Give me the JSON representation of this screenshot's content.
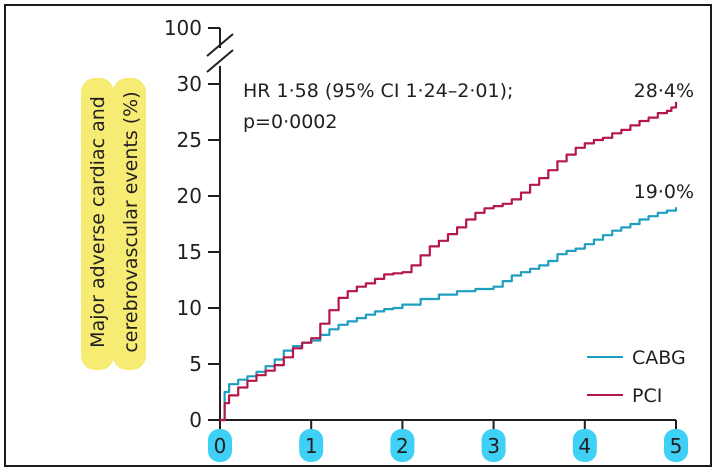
{
  "chart_data": {
    "type": "line",
    "title": "",
    "xlabel": "",
    "ylabel_lines": [
      "Major adverse cardiac and",
      "cerebrovascular events (%)"
    ],
    "xlim": [
      0,
      5
    ],
    "ylim": [
      0,
      30
    ],
    "y_break_top": 100,
    "x_ticks": [
      "0",
      "1",
      "2",
      "3",
      "4",
      "5"
    ],
    "y_ticks": [
      "0",
      "5",
      "10",
      "15",
      "20",
      "25",
      "30"
    ],
    "y_top_label": "100",
    "grid": false,
    "legend_position": "bottom-right",
    "annotation_lines": [
      "HR 1·58 (95% CI 1·24–2·01);",
      "p=0·0002"
    ],
    "series": [
      {
        "name": "CABG",
        "color": "#1f9fc0",
        "end_label": "19·0%",
        "x": [
          0,
          0.05,
          0.1,
          0.2,
          0.3,
          0.4,
          0.5,
          0.6,
          0.7,
          0.8,
          0.9,
          1.0,
          1.1,
          1.2,
          1.3,
          1.4,
          1.5,
          1.6,
          1.7,
          1.8,
          1.9,
          2.0,
          2.2,
          2.4,
          2.6,
          2.8,
          3.0,
          3.1,
          3.2,
          3.3,
          3.4,
          3.5,
          3.6,
          3.7,
          3.8,
          3.9,
          4.0,
          4.1,
          4.2,
          4.3,
          4.4,
          4.5,
          4.6,
          4.7,
          4.8,
          4.9,
          5.0
        ],
        "y": [
          0,
          2.5,
          3.2,
          3.6,
          3.9,
          4.3,
          4.8,
          5.4,
          6.2,
          6.6,
          6.9,
          7.1,
          7.6,
          8.1,
          8.5,
          8.8,
          9.1,
          9.4,
          9.7,
          9.9,
          10.0,
          10.3,
          10.8,
          11.2,
          11.5,
          11.7,
          11.9,
          12.4,
          12.9,
          13.2,
          13.5,
          13.8,
          14.2,
          14.8,
          15.1,
          15.3,
          15.7,
          16.1,
          16.5,
          16.9,
          17.2,
          17.5,
          17.9,
          18.2,
          18.5,
          18.7,
          19.0
        ]
      },
      {
        "name": "PCI",
        "color": "#b5174b",
        "end_label": "28·4%",
        "x": [
          0,
          0.05,
          0.1,
          0.2,
          0.3,
          0.4,
          0.5,
          0.6,
          0.7,
          0.8,
          0.9,
          1.0,
          1.1,
          1.2,
          1.3,
          1.4,
          1.5,
          1.6,
          1.7,
          1.8,
          1.9,
          2.0,
          2.1,
          2.2,
          2.3,
          2.4,
          2.5,
          2.6,
          2.7,
          2.8,
          2.9,
          3.0,
          3.1,
          3.2,
          3.3,
          3.4,
          3.5,
          3.6,
          3.7,
          3.8,
          3.9,
          4.0,
          4.1,
          4.2,
          4.3,
          4.4,
          4.5,
          4.6,
          4.7,
          4.8,
          4.9,
          4.95,
          5.0
        ],
        "y": [
          0,
          1.5,
          2.2,
          2.9,
          3.5,
          4.0,
          4.4,
          4.9,
          5.6,
          6.4,
          6.9,
          7.3,
          8.6,
          9.8,
          10.9,
          11.5,
          11.9,
          12.2,
          12.6,
          13.0,
          13.1,
          13.2,
          13.8,
          14.7,
          15.5,
          16.0,
          16.6,
          17.2,
          17.9,
          18.5,
          18.9,
          19.1,
          19.3,
          19.7,
          20.3,
          21.0,
          21.6,
          22.3,
          23.1,
          23.7,
          24.3,
          24.7,
          25.0,
          25.2,
          25.6,
          25.9,
          26.3,
          26.7,
          27.0,
          27.4,
          27.6,
          27.9,
          28.4
        ]
      }
    ]
  }
}
